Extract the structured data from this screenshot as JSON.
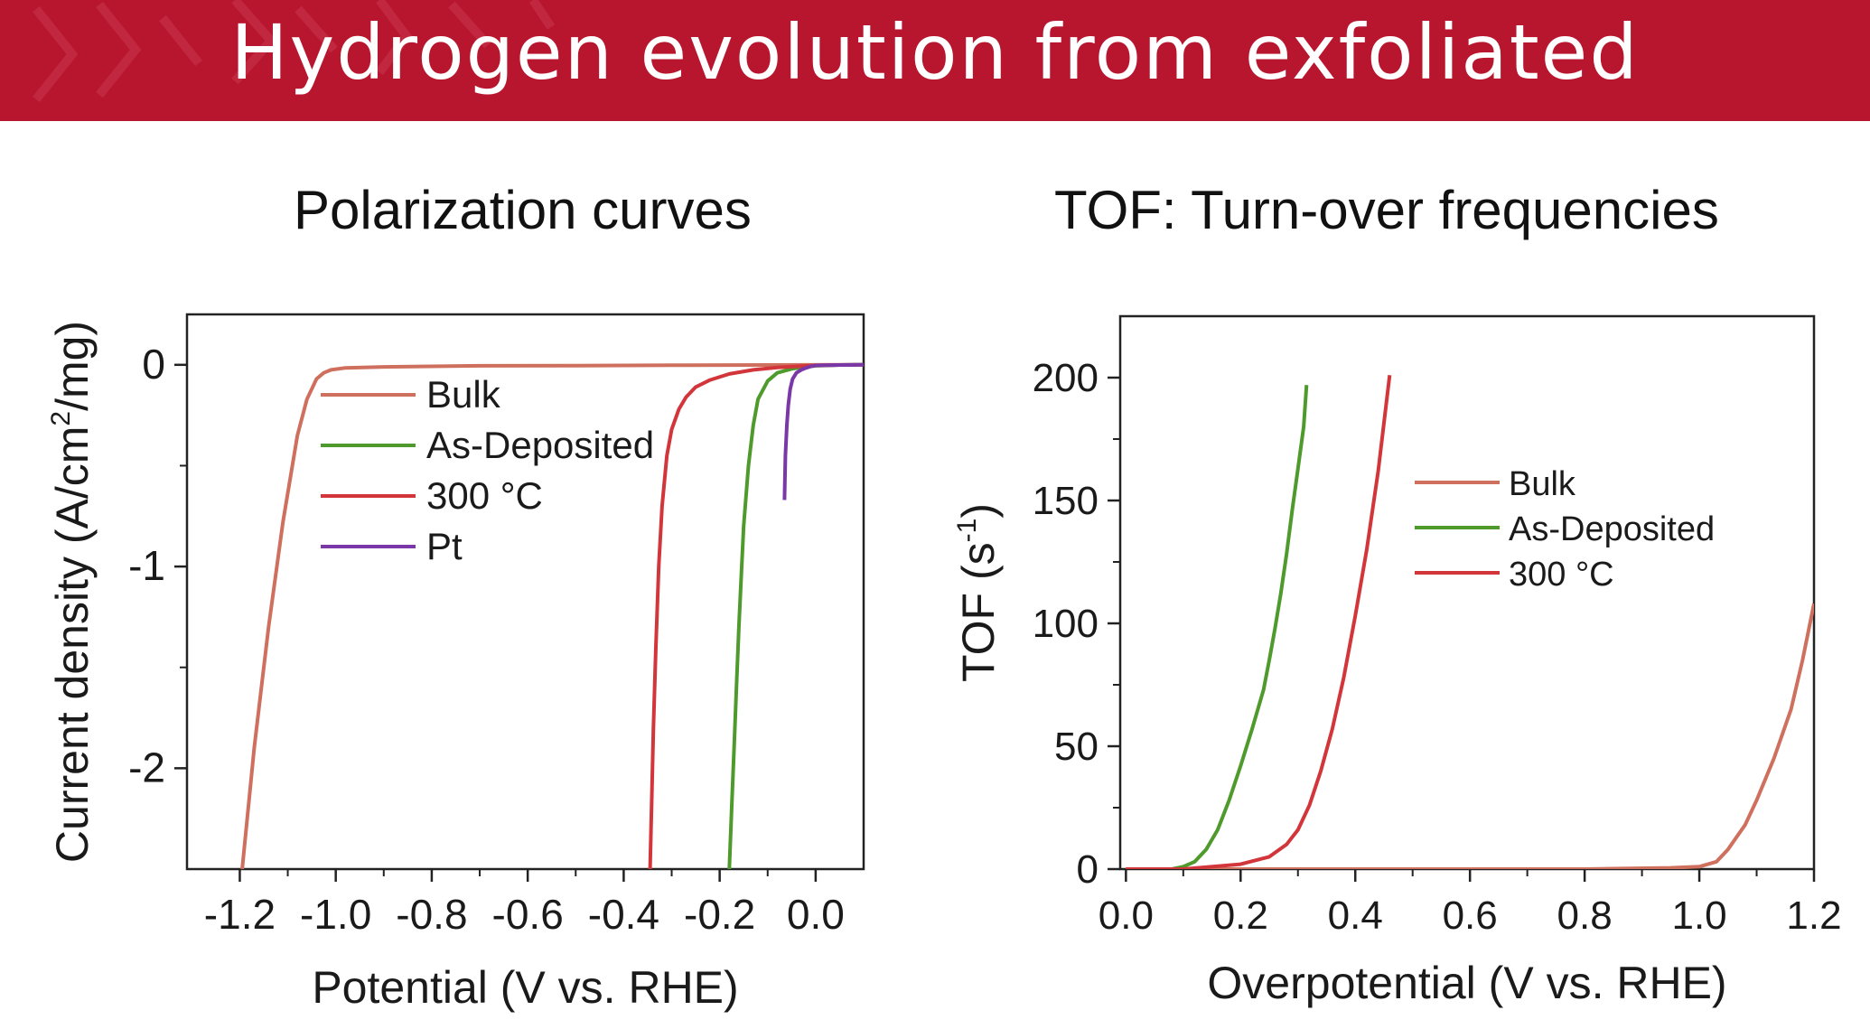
{
  "slide": {
    "title": "Hydrogen evolution from exfoliated",
    "accent_color": "#b8162f"
  },
  "panels": {
    "left_title": "Polarization curves",
    "right_title": "TOF: Turn-over frequencies"
  },
  "chart_data": [
    {
      "type": "line",
      "title": "",
      "xlabel": "Potential (V vs. RHE)",
      "ylabel_parts": [
        "Current density (A/cm",
        "2",
        "/mg)"
      ],
      "xlim": [
        -1.31,
        0.1
      ],
      "ylim": [
        -2.5,
        0.25
      ],
      "xticks": [
        -1.2,
        -1.0,
        -0.8,
        -0.6,
        -0.4,
        -0.2,
        0.0
      ],
      "xtick_labels": [
        "-1.2",
        "-1.0",
        "-0.8",
        "-0.6",
        "-0.4",
        "-0.2",
        "0.0"
      ],
      "yticks": [
        0,
        -1,
        -2
      ],
      "ytick_labels": [
        "0",
        "-1",
        "-2"
      ],
      "legend": "upper-left",
      "grid": false,
      "series": [
        {
          "name": "Bulk",
          "color": "#cf6f5e",
          "x": [
            -1.195,
            -1.17,
            -1.14,
            -1.11,
            -1.08,
            -1.06,
            -1.04,
            -1.025,
            -1.01,
            -0.98,
            -0.9,
            -0.7,
            -0.5,
            -0.3,
            -0.1,
            0.1
          ],
          "y": [
            -2.5,
            -1.9,
            -1.3,
            -0.78,
            -0.35,
            -0.17,
            -0.07,
            -0.04,
            -0.025,
            -0.015,
            -0.01,
            -0.005,
            -0.004,
            -0.002,
            -0.001,
            0
          ]
        },
        {
          "name": "As-Deposited",
          "color": "#4f9a2c",
          "x": [
            -0.18,
            -0.175,
            -0.17,
            -0.165,
            -0.16,
            -0.155,
            -0.15,
            -0.14,
            -0.13,
            -0.12,
            -0.1,
            -0.08,
            -0.05,
            -0.02,
            0.0,
            0.05,
            0.1
          ],
          "y": [
            -2.5,
            -2.2,
            -1.9,
            -1.6,
            -1.3,
            -1.05,
            -0.8,
            -0.5,
            -0.3,
            -0.17,
            -0.08,
            -0.04,
            -0.02,
            -0.01,
            -0.005,
            -0.001,
            0
          ]
        },
        {
          "name": "300 °C",
          "color": "#d2363b",
          "x": [
            -0.345,
            -0.342,
            -0.338,
            -0.333,
            -0.327,
            -0.32,
            -0.31,
            -0.3,
            -0.285,
            -0.27,
            -0.25,
            -0.22,
            -0.18,
            -0.13,
            -0.08,
            -0.03,
            0.0,
            0.05,
            0.1
          ],
          "y": [
            -2.5,
            -2.2,
            -1.8,
            -1.4,
            -1.0,
            -0.7,
            -0.45,
            -0.32,
            -0.22,
            -0.16,
            -0.11,
            -0.075,
            -0.045,
            -0.025,
            -0.013,
            -0.006,
            -0.003,
            -0.001,
            0
          ]
        },
        {
          "name": "Pt",
          "color": "#7a37a8",
          "x": [
            -0.065,
            -0.063,
            -0.06,
            -0.057,
            -0.053,
            -0.048,
            -0.04,
            -0.03,
            -0.02,
            -0.01,
            0.0,
            0.05,
            0.1
          ],
          "y": [
            -0.67,
            -0.45,
            -0.3,
            -0.2,
            -0.12,
            -0.07,
            -0.04,
            -0.025,
            -0.015,
            -0.008,
            -0.003,
            -0.001,
            0
          ]
        }
      ]
    },
    {
      "type": "line",
      "title": "",
      "xlabel": "Overpotential (V vs. RHE)",
      "ylabel_parts": [
        "TOF (s",
        "-1",
        ")"
      ],
      "xlim": [
        -0.01,
        1.2
      ],
      "ylim": [
        0,
        225
      ],
      "xticks": [
        0.0,
        0.2,
        0.4,
        0.6,
        0.8,
        1.0,
        1.2
      ],
      "xtick_labels": [
        "0.0",
        "0.2",
        "0.4",
        "0.6",
        "0.8",
        "1.0",
        "1.2"
      ],
      "yticks": [
        0,
        50,
        100,
        150,
        200
      ],
      "ytick_labels": [
        "0",
        "50",
        "100",
        "150",
        "200"
      ],
      "legend": "center-right",
      "grid": false,
      "series": [
        {
          "name": "Bulk",
          "color": "#cf6f5e",
          "x": [
            0.0,
            0.2,
            0.4,
            0.6,
            0.8,
            0.95,
            1.0,
            1.03,
            1.05,
            1.08,
            1.1,
            1.13,
            1.16,
            1.18,
            1.2
          ],
          "y": [
            0,
            0,
            0,
            0,
            0,
            0.5,
            1,
            3,
            8,
            18,
            28,
            45,
            65,
            85,
            108
          ]
        },
        {
          "name": "As-Deposited",
          "color": "#4f9a2c",
          "x": [
            0.0,
            0.08,
            0.1,
            0.12,
            0.14,
            0.16,
            0.18,
            0.2,
            0.22,
            0.24,
            0.25,
            0.26,
            0.27,
            0.28,
            0.29,
            0.3,
            0.31,
            0.315
          ],
          "y": [
            0,
            0,
            1,
            3,
            8,
            16,
            28,
            42,
            57,
            73,
            85,
            98,
            112,
            128,
            146,
            163,
            180,
            197
          ]
        },
        {
          "name": "300 °C",
          "color": "#d2363b",
          "x": [
            0.0,
            0.1,
            0.2,
            0.25,
            0.28,
            0.3,
            0.32,
            0.34,
            0.36,
            0.38,
            0.4,
            0.42,
            0.44,
            0.46
          ],
          "y": [
            0,
            0,
            2,
            5,
            10,
            16,
            26,
            40,
            57,
            78,
            103,
            130,
            162,
            201
          ]
        }
      ]
    }
  ]
}
